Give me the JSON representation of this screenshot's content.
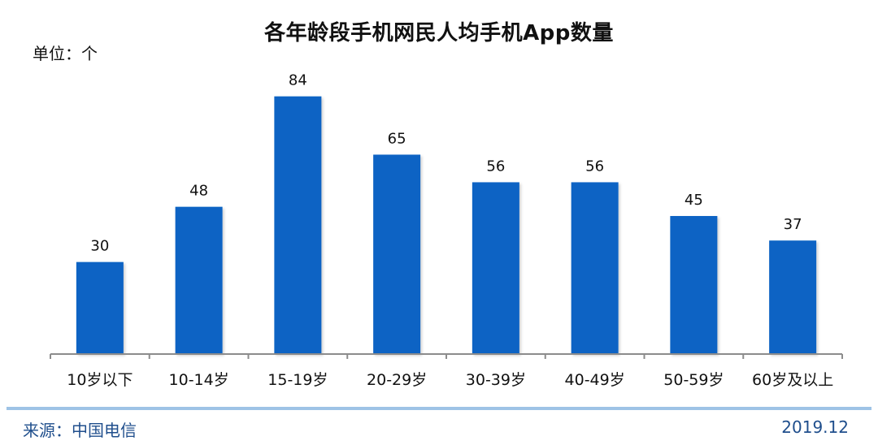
{
  "page": {
    "title": "各年龄段手机网民人均手机App数量",
    "unit_label": "单位：个",
    "source": "来源：中国电信",
    "date": "2019.12"
  },
  "colors": {
    "bar": "#0a64c4",
    "axis": "#8c8c8c",
    "footer_line": "#9ec3e6",
    "footer_text": "#1f4e8c"
  },
  "chart_data": {
    "type": "bar",
    "categories": [
      "10岁以下",
      "10-14岁",
      "15-19岁",
      "20-29岁",
      "30-39岁",
      "40-49岁",
      "50-59岁",
      "60岁及以上"
    ],
    "values": [
      30,
      48,
      84,
      65,
      56,
      56,
      45,
      37
    ],
    "title": "各年龄段手机网民人均手机App数量",
    "ylabel": "单位：个",
    "ylim": [
      0,
      90
    ],
    "grid": false,
    "data_labels": true
  }
}
